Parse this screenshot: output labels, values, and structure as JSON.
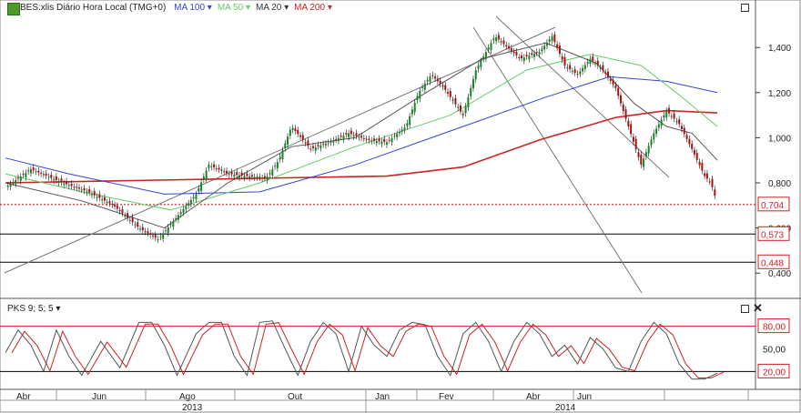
{
  "header": {
    "symbol_text": "BES:xlis Diário Hora Local (TMG+0)",
    "indicators": [
      {
        "label": "MA 100",
        "color": "#3344cc"
      },
      {
        "label": "MA 50",
        "color": "#66cc66"
      },
      {
        "label": "MA 20",
        "color": "#333333"
      },
      {
        "label": "MA 200",
        "color": "#cc2222"
      }
    ]
  },
  "oscillator": {
    "label": "PKS 9; 5; 5",
    "levels": [
      "80,00",
      "50,00",
      "20,00"
    ]
  },
  "price_axis_ticks": [
    "1,400",
    "1,200",
    "1,000",
    "0,800",
    "0,600",
    "0,400"
  ],
  "price_markers": [
    {
      "label": "0,704",
      "value": 0.704
    },
    {
      "label": "0,573",
      "value": 0.573
    },
    {
      "label": "0,448",
      "value": 0.448
    }
  ],
  "month_labels": [
    "Abr",
    "Jun",
    "Ago",
    "Out",
    "Jan",
    "Fev",
    "Abr",
    "Jun"
  ],
  "year_labels": [
    "2013",
    "2014"
  ],
  "chart_data": {
    "type": "line",
    "price_series": [
      [
        0,
        0.78
      ],
      [
        4,
        0.86
      ],
      [
        9,
        0.8
      ],
      [
        13,
        0.76
      ],
      [
        17,
        0.7
      ],
      [
        21,
        0.6
      ],
      [
        24,
        0.55
      ],
      [
        27,
        0.65
      ],
      [
        30,
        0.75
      ],
      [
        32,
        0.88
      ],
      [
        35,
        0.84
      ],
      [
        38,
        0.83
      ],
      [
        41,
        0.82
      ],
      [
        43,
        0.9
      ],
      [
        45,
        1.05
      ],
      [
        48,
        0.95
      ],
      [
        51,
        0.98
      ],
      [
        54,
        1.02
      ],
      [
        57,
        0.99
      ],
      [
        60,
        0.98
      ],
      [
        63,
        1.05
      ],
      [
        65,
        1.2
      ],
      [
        67,
        1.28
      ],
      [
        69,
        1.22
      ],
      [
        72,
        1.1
      ],
      [
        74,
        1.3
      ],
      [
        77,
        1.45
      ],
      [
        79,
        1.4
      ],
      [
        81,
        1.35
      ],
      [
        84,
        1.38
      ],
      [
        86,
        1.45
      ],
      [
        88,
        1.32
      ],
      [
        90,
        1.28
      ],
      [
        92,
        1.35
      ],
      [
        94,
        1.3
      ],
      [
        96,
        1.22
      ],
      [
        98,
        1.05
      ],
      [
        100,
        0.88
      ],
      [
        102,
        1.02
      ],
      [
        104,
        1.12
      ],
      [
        106,
        1.06
      ],
      [
        108,
        0.95
      ],
      [
        110,
        0.83
      ],
      [
        111,
        0.8
      ],
      [
        112,
        0.704
      ]
    ],
    "ma200": [
      [
        0,
        0.8
      ],
      [
        20,
        0.81
      ],
      [
        40,
        0.82
      ],
      [
        60,
        0.83
      ],
      [
        72,
        0.87
      ],
      [
        84,
        0.99
      ],
      [
        96,
        1.09
      ],
      [
        104,
        1.12
      ],
      [
        112,
        1.11
      ]
    ],
    "ma100": [
      [
        0,
        0.91
      ],
      [
        10,
        0.84
      ],
      [
        25,
        0.75
      ],
      [
        40,
        0.76
      ],
      [
        55,
        0.88
      ],
      [
        70,
        1.03
      ],
      [
        85,
        1.18
      ],
      [
        95,
        1.27
      ],
      [
        104,
        1.25
      ],
      [
        112,
        1.2
      ]
    ],
    "ma50": [
      [
        0,
        0.84
      ],
      [
        12,
        0.76
      ],
      [
        26,
        0.68
      ],
      [
        40,
        0.8
      ],
      [
        55,
        0.96
      ],
      [
        70,
        1.1
      ],
      [
        82,
        1.3
      ],
      [
        92,
        1.37
      ],
      [
        100,
        1.32
      ],
      [
        106,
        1.19
      ],
      [
        112,
        1.05
      ]
    ],
    "ma20": [
      [
        0,
        0.8
      ],
      [
        12,
        0.72
      ],
      [
        25,
        0.6
      ],
      [
        35,
        0.8
      ],
      [
        45,
        0.96
      ],
      [
        55,
        1.0
      ],
      [
        65,
        1.18
      ],
      [
        75,
        1.35
      ],
      [
        85,
        1.42
      ],
      [
        93,
        1.33
      ],
      [
        99,
        1.15
      ],
      [
        104,
        1.05
      ],
      [
        108,
        1.02
      ],
      [
        112,
        0.9
      ]
    ],
    "oscillator": [
      [
        0,
        45
      ],
      [
        2,
        75
      ],
      [
        4,
        55
      ],
      [
        6,
        20
      ],
      [
        8,
        75
      ],
      [
        10,
        40
      ],
      [
        12,
        15
      ],
      [
        15,
        60
      ],
      [
        18,
        25
      ],
      [
        21,
        85
      ],
      [
        23,
        85
      ],
      [
        25,
        55
      ],
      [
        27,
        15
      ],
      [
        30,
        70
      ],
      [
        32,
        85
      ],
      [
        34,
        85
      ],
      [
        36,
        40
      ],
      [
        38,
        15
      ],
      [
        40,
        85
      ],
      [
        42,
        87
      ],
      [
        44,
        50
      ],
      [
        46,
        15
      ],
      [
        48,
        60
      ],
      [
        50,
        85
      ],
      [
        52,
        70
      ],
      [
        54,
        20
      ],
      [
        56,
        80
      ],
      [
        58,
        55
      ],
      [
        60,
        40
      ],
      [
        62,
        75
      ],
      [
        64,
        85
      ],
      [
        66,
        82
      ],
      [
        68,
        40
      ],
      [
        70,
        15
      ],
      [
        72,
        70
      ],
      [
        74,
        85
      ],
      [
        76,
        60
      ],
      [
        78,
        20
      ],
      [
        80,
        60
      ],
      [
        82,
        85
      ],
      [
        84,
        70
      ],
      [
        86,
        40
      ],
      [
        88,
        55
      ],
      [
        90,
        30
      ],
      [
        92,
        65
      ],
      [
        94,
        50
      ],
      [
        96,
        25
      ],
      [
        98,
        20
      ],
      [
        100,
        60
      ],
      [
        102,
        85
      ],
      [
        104,
        70
      ],
      [
        106,
        30
      ],
      [
        108,
        10
      ],
      [
        110,
        10
      ],
      [
        112,
        18
      ]
    ],
    "y_range": [
      0.3,
      1.55
    ],
    "osc_range": [
      0,
      100
    ]
  }
}
